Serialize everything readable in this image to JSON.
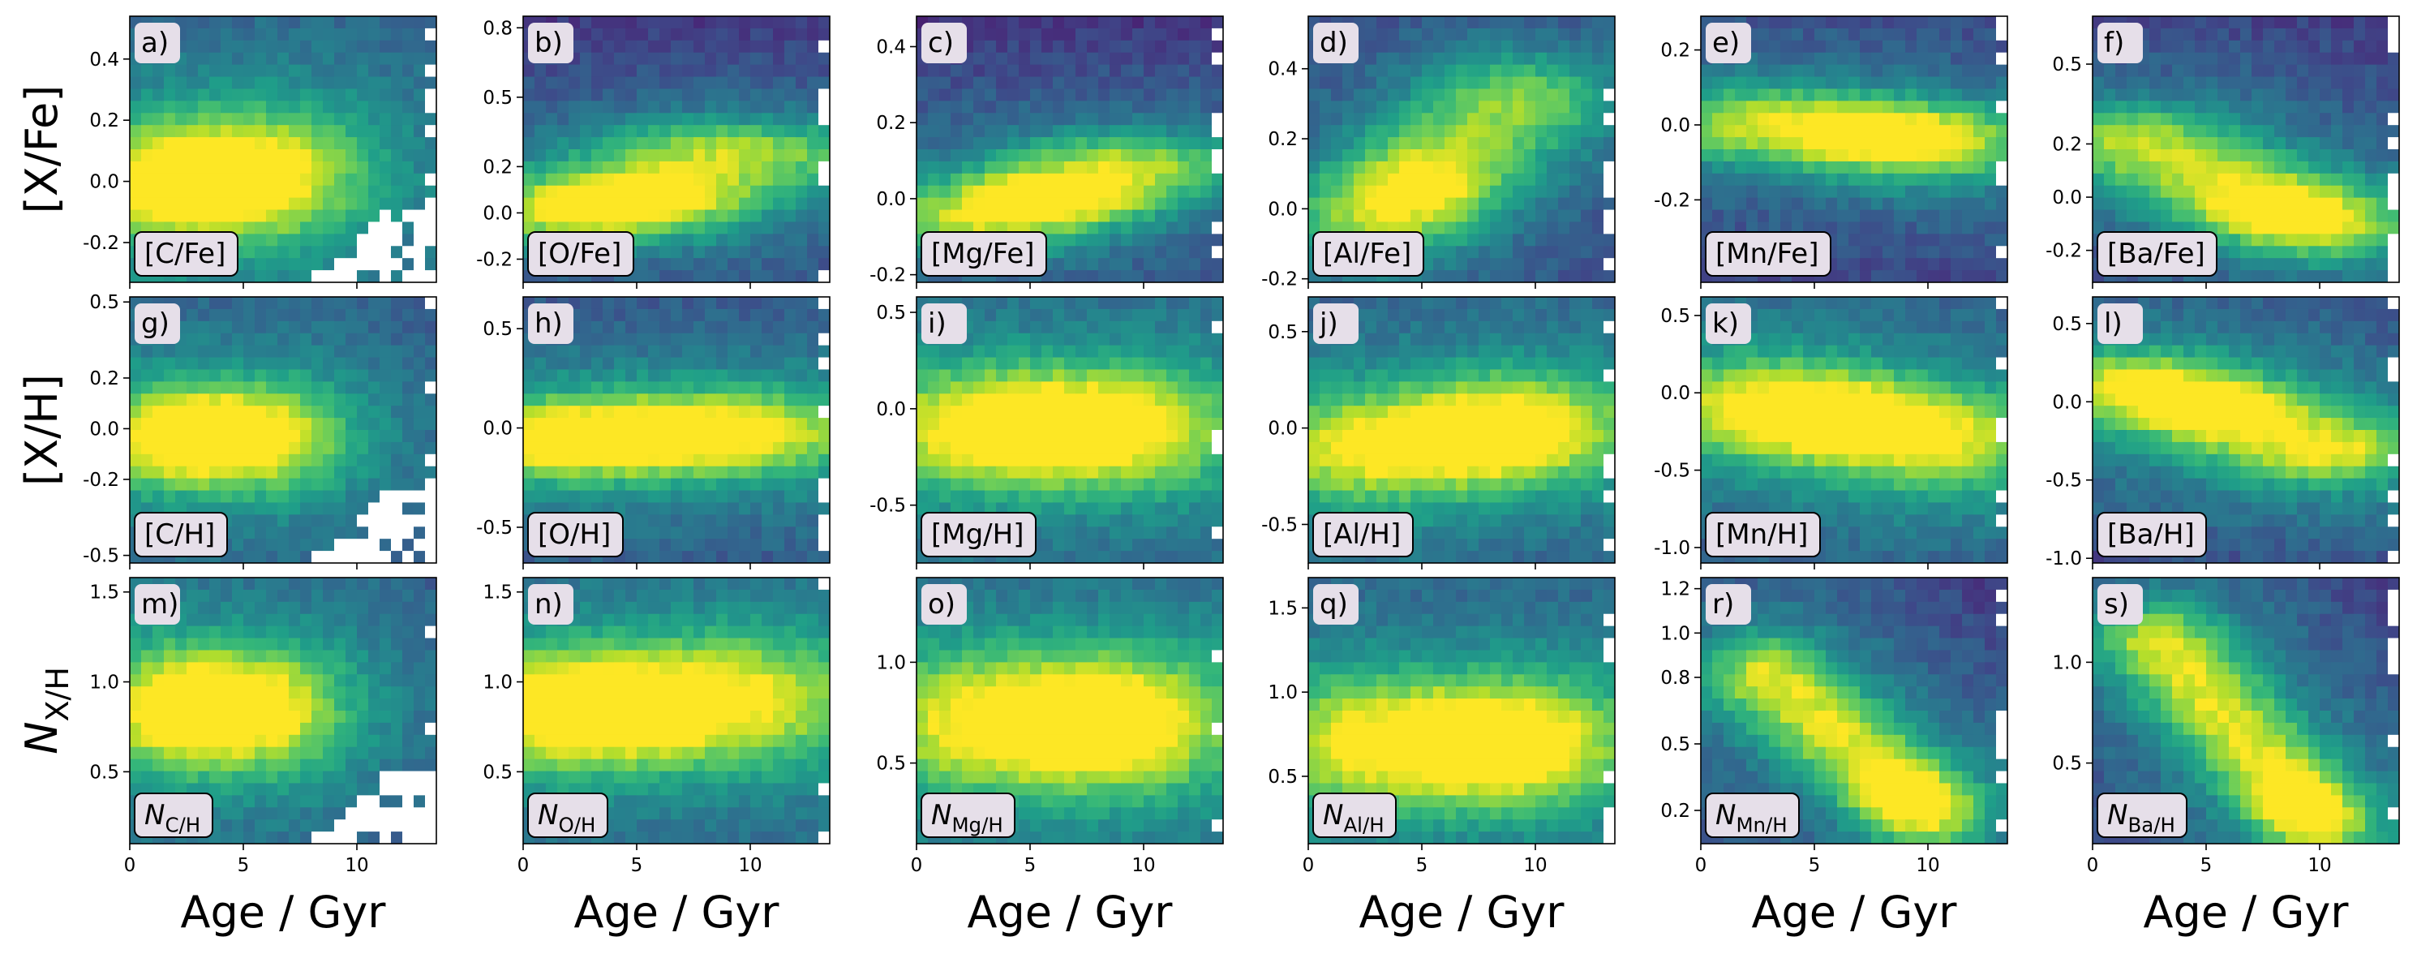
{
  "figure": {
    "row_labels": [
      {
        "text": "[X/Fe]"
      },
      {
        "text": "[X/H]"
      },
      {
        "base": "N",
        "sub": "X/H"
      }
    ],
    "xlabel": "Age / Gyr",
    "colormap": [
      "#440154",
      "#482878",
      "#3e4989",
      "#31688e",
      "#26828e",
      "#1f9e89",
      "#35b779",
      "#6ece58",
      "#b5de2b",
      "#fde725"
    ],
    "missing_color": "#ffffff",
    "box_fill": "#e6dfe9",
    "box_stroke": "#000000"
  },
  "chart_data": [
    {
      "type": "heatmap",
      "letter": "a)",
      "label": {
        "text": "[C/Fe]"
      },
      "xlim": [
        0,
        13.5
      ],
      "ylim": [
        -0.33,
        0.54
      ],
      "xticks": [
        0,
        5,
        10
      ],
      "yticks": [
        -0.2,
        0.0,
        0.2,
        0.4
      ],
      "yticklabels": [
        "-0.2",
        "0.0",
        "0.2",
        "0.4"
      ],
      "peak": [
        3.5,
        0.0
      ],
      "trend": [
        [
          2,
          0.0
        ],
        [
          6,
          0.02
        ]
      ],
      "widths": [
        2.5,
        0.12
      ],
      "peak_density": 1.0,
      "halo": 0.4,
      "missing": "bottom-right"
    },
    {
      "type": "heatmap",
      "letter": "b)",
      "label": {
        "text": "[O/Fe]"
      },
      "xlim": [
        0,
        13.5
      ],
      "ylim": [
        -0.3,
        0.85
      ],
      "xticks": [
        0,
        5,
        10
      ],
      "yticks": [
        -0.2,
        0.0,
        0.2,
        0.5,
        0.8
      ],
      "yticklabels": [
        "-0.2",
        "0.0",
        "0.2",
        "0.5",
        "0.8"
      ],
      "peak": [
        4.5,
        0.05
      ],
      "trend": [
        [
          3,
          0.0
        ],
        [
          9,
          0.25
        ]
      ],
      "widths": [
        3.5,
        0.08
      ],
      "peak_density": 1.0,
      "halo": 0.3,
      "missing": "none"
    },
    {
      "type": "heatmap",
      "letter": "c)",
      "label": {
        "text": "[Mg/Fe]"
      },
      "xlim": [
        0,
        13.5
      ],
      "ylim": [
        -0.22,
        0.48
      ],
      "xticks": [
        0,
        5,
        10
      ],
      "yticks": [
        -0.2,
        0.0,
        0.2,
        0.4
      ],
      "yticklabels": [
        "-0.2",
        "0.0",
        "0.2",
        "0.4"
      ],
      "peak": [
        6,
        0.0
      ],
      "trend": [
        [
          3,
          -0.05
        ],
        [
          9,
          0.08
        ]
      ],
      "widths": [
        3.0,
        0.05
      ],
      "peak_density": 1.0,
      "halo": 0.3,
      "missing": "none"
    },
    {
      "type": "heatmap",
      "letter": "d)",
      "label": {
        "text": "[Al/Fe]"
      },
      "xlim": [
        0,
        13.5
      ],
      "ylim": [
        -0.21,
        0.55
      ],
      "xticks": [
        0,
        5,
        10
      ],
      "yticks": [
        -0.2,
        0.0,
        0.2,
        0.4
      ],
      "yticklabels": [
        "-0.2",
        "0.0",
        "0.2",
        "0.4"
      ],
      "peak": [
        5,
        0.05
      ],
      "trend": [
        [
          3,
          -0.02
        ],
        [
          9,
          0.3
        ]
      ],
      "widths": [
        2.5,
        0.08
      ],
      "peak_density": 0.9,
      "halo": 0.3,
      "missing": "none"
    },
    {
      "type": "heatmap",
      "letter": "e)",
      "label": {
        "text": "[Mn/Fe]"
      },
      "xlim": [
        0,
        13.5
      ],
      "ylim": [
        -0.42,
        0.29
      ],
      "xticks": [
        0,
        5,
        10
      ],
      "yticks": [
        -0.2,
        0.0,
        0.2
      ],
      "yticklabels": [
        "-0.2",
        "0.0",
        "0.2"
      ],
      "peak": [
        8,
        -0.02
      ],
      "trend": [
        [
          3,
          0.0
        ],
        [
          9.5,
          -0.05
        ]
      ],
      "widths": [
        3.0,
        0.06
      ],
      "peak_density": 1.0,
      "halo": 0.3,
      "missing": "none"
    },
    {
      "type": "heatmap",
      "letter": "f)",
      "label": {
        "text": "[Ba/Fe]"
      },
      "xlim": [
        0,
        13.5
      ],
      "ylim": [
        -0.32,
        0.68
      ],
      "xticks": [
        0,
        5,
        10
      ],
      "yticks": [
        -0.2,
        0.0,
        0.2,
        0.5
      ],
      "yticklabels": [
        "-0.2",
        "0.0",
        "0.2",
        "0.5"
      ],
      "peak": [
        8,
        -0.05
      ],
      "trend": [
        [
          2,
          0.2
        ],
        [
          10,
          -0.1
        ]
      ],
      "widths": [
        2.5,
        0.08
      ],
      "peak_density": 1.0,
      "halo": 0.3,
      "missing": "none"
    },
    {
      "type": "heatmap",
      "letter": "g)",
      "label": {
        "text": "[C/H]"
      },
      "xlim": [
        0,
        13.5
      ],
      "ylim": [
        -0.53,
        0.52
      ],
      "xticks": [
        0,
        5,
        10
      ],
      "yticks": [
        -0.5,
        -0.2,
        0.0,
        0.2,
        0.5
      ],
      "yticklabels": [
        "-0.5",
        "-0.2",
        "0.0",
        "0.2",
        "0.5"
      ],
      "peak": [
        3.5,
        -0.03
      ],
      "trend": [
        [
          2,
          -0.03
        ],
        [
          6,
          -0.03
        ]
      ],
      "widths": [
        2.0,
        0.12
      ],
      "peak_density": 1.0,
      "halo": 0.4,
      "missing": "bottom-right"
    },
    {
      "type": "heatmap",
      "letter": "h)",
      "label": {
        "text": "[O/H]"
      },
      "xlim": [
        0,
        13.5
      ],
      "ylim": [
        -0.68,
        0.66
      ],
      "xticks": [
        0,
        5,
        10
      ],
      "yticks": [
        -0.5,
        0.0,
        0.5
      ],
      "yticklabels": [
        "-0.5",
        "0.0",
        "0.5"
      ],
      "peak": [
        5,
        -0.05
      ],
      "trend": [
        [
          2,
          -0.05
        ],
        [
          9,
          -0.02
        ]
      ],
      "widths": [
        3.5,
        0.12
      ],
      "peak_density": 1.0,
      "halo": 0.4,
      "missing": "none"
    },
    {
      "type": "heatmap",
      "letter": "i)",
      "label": {
        "text": "[Mg/H]"
      },
      "xlim": [
        0,
        13.5
      ],
      "ylim": [
        -0.8,
        0.58
      ],
      "xticks": [
        0,
        5,
        10
      ],
      "yticks": [
        -0.5,
        0.0,
        0.5
      ],
      "yticklabels": [
        "-0.5",
        "0.0",
        "0.5"
      ],
      "peak": [
        6,
        -0.1
      ],
      "trend": [
        [
          3,
          -0.1
        ],
        [
          9,
          -0.1
        ]
      ],
      "widths": [
        3.0,
        0.18
      ],
      "peak_density": 1.0,
      "halo": 0.4,
      "missing": "none"
    },
    {
      "type": "heatmap",
      "letter": "j)",
      "label": {
        "text": "[Al/H]"
      },
      "xlim": [
        0,
        13.5
      ],
      "ylim": [
        -0.7,
        0.68
      ],
      "xticks": [
        0,
        5,
        10
      ],
      "yticks": [
        -0.5,
        0.0,
        0.5
      ],
      "yticklabels": [
        "-0.5",
        "0.0",
        "0.5"
      ],
      "peak": [
        7.5,
        -0.05
      ],
      "trend": [
        [
          3,
          -0.1
        ],
        [
          9,
          0.0
        ]
      ],
      "widths": [
        3.0,
        0.16
      ],
      "peak_density": 1.0,
      "halo": 0.4,
      "missing": "none"
    },
    {
      "type": "heatmap",
      "letter": "k)",
      "label": {
        "text": "[Mn/H]"
      },
      "xlim": [
        0,
        13.5
      ],
      "ylim": [
        -1.1,
        0.62
      ],
      "xticks": [
        0,
        5,
        10
      ],
      "yticks": [
        -1.0,
        -0.5,
        0.0,
        0.5
      ],
      "yticklabels": [
        "-1.0",
        "-0.5",
        "0.0",
        "0.5"
      ],
      "peak": [
        6,
        -0.15
      ],
      "trend": [
        [
          3,
          -0.1
        ],
        [
          10,
          -0.3
        ]
      ],
      "widths": [
        3.0,
        0.18
      ],
      "peak_density": 1.0,
      "halo": 0.4,
      "missing": "none"
    },
    {
      "type": "heatmap",
      "letter": "l)",
      "label": {
        "text": "[Ba/H]"
      },
      "xlim": [
        0,
        13.5
      ],
      "ylim": [
        -1.03,
        0.67
      ],
      "xticks": [
        0,
        5,
        10
      ],
      "yticks": [
        -1.0,
        -0.5,
        0.0,
        0.5
      ],
      "yticklabels": [
        "-1.0",
        "-0.5",
        "0.0",
        "0.5"
      ],
      "peak": [
        5,
        0.0
      ],
      "trend": [
        [
          2,
          0.1
        ],
        [
          10,
          -0.3
        ]
      ],
      "widths": [
        2.5,
        0.12
      ],
      "peak_density": 1.0,
      "halo": 0.4,
      "missing": "none"
    },
    {
      "type": "heatmap",
      "letter": "m)",
      "label": {
        "base": "N",
        "sub": "C/H"
      },
      "xlim": [
        0,
        13.5
      ],
      "ylim": [
        0.1,
        1.58
      ],
      "xticks": [
        0,
        5,
        10
      ],
      "yticks": [
        0.5,
        1.0,
        1.5
      ],
      "yticklabels": [
        "0.5",
        "1.0",
        "1.5"
      ],
      "peak": [
        3.5,
        0.85
      ],
      "trend": [
        [
          2,
          0.85
        ],
        [
          6,
          0.85
        ]
      ],
      "widths": [
        2.0,
        0.2
      ],
      "peak_density": 1.0,
      "halo": 0.4,
      "missing": "bottom-right"
    },
    {
      "type": "heatmap",
      "letter": "n)",
      "label": {
        "base": "N",
        "sub": "O/H"
      },
      "xlim": [
        0,
        13.5
      ],
      "ylim": [
        0.1,
        1.58
      ],
      "xticks": [
        0,
        5,
        10
      ],
      "yticks": [
        0.5,
        1.0,
        1.5
      ],
      "yticklabels": [
        "0.5",
        "1.0",
        "1.5"
      ],
      "peak": [
        4,
        0.85
      ],
      "trend": [
        [
          2,
          0.85
        ],
        [
          9,
          0.9
        ]
      ],
      "widths": [
        3.5,
        0.2
      ],
      "peak_density": 1.0,
      "halo": 0.4,
      "missing": "none"
    },
    {
      "type": "heatmap",
      "letter": "o)",
      "label": {
        "base": "N",
        "sub": "Mg/H"
      },
      "xlim": [
        0,
        13.5
      ],
      "ylim": [
        0.1,
        1.42
      ],
      "xticks": [
        0,
        5,
        10
      ],
      "yticks": [
        0.5,
        1.0
      ],
      "yticklabels": [
        "0.5",
        "1.0"
      ],
      "peak": [
        7,
        0.7
      ],
      "trend": [
        [
          3,
          0.7
        ],
        [
          9,
          0.7
        ]
      ],
      "widths": [
        3.0,
        0.2
      ],
      "peak_density": 1.0,
      "halo": 0.4,
      "missing": "none"
    },
    {
      "type": "heatmap",
      "letter": "q)",
      "label": {
        "base": "N",
        "sub": "Al/H"
      },
      "xlim": [
        0,
        13.5
      ],
      "ylim": [
        0.1,
        1.68
      ],
      "xticks": [
        0,
        5,
        10
      ],
      "yticks": [
        0.5,
        1.0,
        1.5
      ],
      "yticklabels": [
        "0.5",
        "1.0",
        "1.5"
      ],
      "peak": [
        7.5,
        0.7
      ],
      "trend": [
        [
          3,
          0.7
        ],
        [
          9,
          0.7
        ]
      ],
      "widths": [
        3.0,
        0.22
      ],
      "peak_density": 1.0,
      "halo": 0.4,
      "missing": "none"
    },
    {
      "type": "heatmap",
      "letter": "r)",
      "label": {
        "base": "N",
        "sub": "Mn/H"
      },
      "xlim": [
        0,
        13.5
      ],
      "ylim": [
        0.05,
        1.25
      ],
      "xticks": [
        0,
        5,
        10
      ],
      "yticks": [
        0.2,
        0.5,
        0.8,
        1.0,
        1.2
      ],
      "yticklabels": [
        "0.2",
        "0.5",
        "0.8",
        "1.0",
        "1.2"
      ],
      "peak": [
        8.8,
        0.27
      ],
      "trend": [
        [
          3,
          0.8
        ],
        [
          10,
          0.2
        ]
      ],
      "widths": [
        1.5,
        0.1
      ],
      "peak_density": 1.0,
      "halo": 0.35,
      "missing": "none"
    },
    {
      "type": "heatmap",
      "letter": "s)",
      "label": {
        "base": "N",
        "sub": "Ba/H"
      },
      "xlim": [
        0,
        13.5
      ],
      "ylim": [
        0.1,
        1.42
      ],
      "xticks": [
        0,
        5,
        10
      ],
      "yticks": [
        0.5,
        1.0
      ],
      "yticklabels": [
        "0.5",
        "1.0"
      ],
      "peak": [
        9,
        0.3
      ],
      "trend": [
        [
          3,
          1.1
        ],
        [
          10,
          0.2
        ]
      ],
      "widths": [
        1.5,
        0.1
      ],
      "peak_density": 1.0,
      "halo": 0.35,
      "missing": "none"
    }
  ]
}
